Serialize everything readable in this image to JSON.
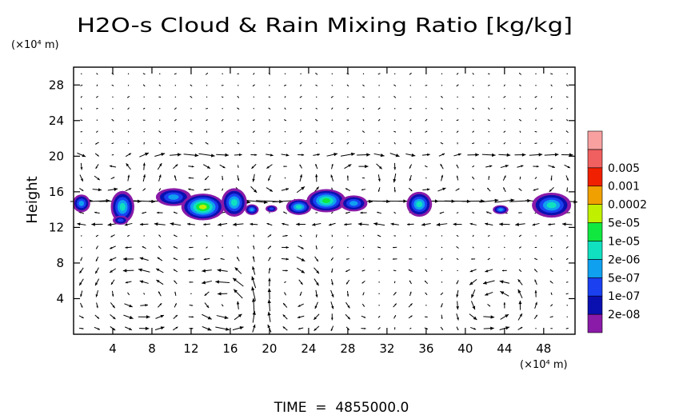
{
  "chart_data": {
    "type": "heatmap",
    "title": "H2O-s Cloud & Rain Mixing Ratio [kg/kg]",
    "ylabel": "Height",
    "y_unit": "(×10⁴ m)",
    "x_unit": "(×10⁴ m)",
    "footer": "TIME  =  4855000.0",
    "xlim": [
      0,
      51.2
    ],
    "ylim": [
      0,
      30
    ],
    "x_ticks": [
      "4",
      "8",
      "12",
      "16",
      "20",
      "24",
      "28",
      "32",
      "36",
      "40",
      "44",
      "48"
    ],
    "y_ticks": [
      "4",
      "8",
      "12",
      "16",
      "20",
      "24",
      "28"
    ],
    "x_tick_values": [
      4,
      8,
      12,
      16,
      20,
      24,
      28,
      32,
      36,
      40,
      44,
      48
    ],
    "y_tick_values": [
      4,
      8,
      12,
      16,
      20,
      24,
      28
    ],
    "colorbar": {
      "levels": [
        "2e-08",
        "1e-07",
        "5e-07",
        "2e-06",
        "1e-05",
        "5e-05",
        "0.0002",
        "0.001",
        "0.005"
      ],
      "colors": [
        "#8a1aa8",
        "#0a10b0",
        "#1a40f0",
        "#10a0f0",
        "#10e0c0",
        "#10e840",
        "#c0f000",
        "#f0a000",
        "#f02000",
        "#f06060",
        "#f8a0a0"
      ]
    },
    "cloud_blobs": [
      {
        "x": 0.8,
        "y": 14.7,
        "rx": 0.9,
        "ry": 1.0,
        "level": 3
      },
      {
        "x": 5.0,
        "y": 14.3,
        "rx": 1.2,
        "ry": 1.8,
        "level": 4
      },
      {
        "x": 4.8,
        "y": 12.8,
        "rx": 0.8,
        "ry": 0.5,
        "level": 2
      },
      {
        "x": 10.2,
        "y": 15.4,
        "rx": 1.8,
        "ry": 1.0,
        "level": 3
      },
      {
        "x": 13.2,
        "y": 14.3,
        "rx": 2.2,
        "ry": 1.5,
        "level": 6
      },
      {
        "x": 16.4,
        "y": 14.8,
        "rx": 1.3,
        "ry": 1.6,
        "level": 4
      },
      {
        "x": 18.2,
        "y": 14.0,
        "rx": 0.7,
        "ry": 0.6,
        "level": 3
      },
      {
        "x": 20.2,
        "y": 14.1,
        "rx": 0.6,
        "ry": 0.4,
        "level": 2
      },
      {
        "x": 23.0,
        "y": 14.3,
        "rx": 1.3,
        "ry": 0.9,
        "level": 4
      },
      {
        "x": 25.8,
        "y": 15.0,
        "rx": 2.0,
        "ry": 1.3,
        "level": 5
      },
      {
        "x": 28.6,
        "y": 14.7,
        "rx": 1.4,
        "ry": 0.9,
        "level": 3
      },
      {
        "x": 35.3,
        "y": 14.6,
        "rx": 1.3,
        "ry": 1.4,
        "level": 4
      },
      {
        "x": 43.6,
        "y": 14.0,
        "rx": 0.8,
        "ry": 0.5,
        "level": 3
      },
      {
        "x": 48.8,
        "y": 14.5,
        "rx": 2.0,
        "ry": 1.4,
        "level": 4
      }
    ],
    "circulation_cells": [
      {
        "x": 6.5,
        "y": 4.5,
        "rx": 5.0,
        "ry": 4.0,
        "strength": 1.0
      },
      {
        "x": 16.0,
        "y": 3.5,
        "rx": 3.5,
        "ry": 3.5,
        "strength": 1.3
      },
      {
        "x": 22.0,
        "y": 4.5,
        "rx": 4.0,
        "ry": 4.5,
        "strength": -0.8
      },
      {
        "x": 43.0,
        "y": 3.5,
        "rx": 4.0,
        "ry": 3.0,
        "strength": 1.0
      },
      {
        "x": 30.0,
        "y": 5.0,
        "rx": 5.0,
        "ry": 4.0,
        "strength": 0.4
      },
      {
        "x": 4.0,
        "y": 18.0,
        "rx": 4.0,
        "ry": 2.0,
        "strength": 0.8
      },
      {
        "x": 12.0,
        "y": 18.0,
        "rx": 3.0,
        "ry": 2.0,
        "strength": -0.7
      },
      {
        "x": 21.0,
        "y": 17.5,
        "rx": 3.5,
        "ry": 2.0,
        "strength": 0.8
      },
      {
        "x": 30.0,
        "y": 17.5,
        "rx": 3.0,
        "ry": 2.0,
        "strength": -0.6
      },
      {
        "x": 36.0,
        "y": 17.5,
        "rx": 3.0,
        "ry": 2.0,
        "strength": 0.7
      },
      {
        "x": 46.0,
        "y": 17.5,
        "rx": 4.0,
        "ry": 2.0,
        "strength": -0.6
      }
    ],
    "jets": [
      {
        "y": 15.0,
        "half_width": 0.7,
        "u": 1.6
      },
      {
        "y": 12.9,
        "half_width": 0.6,
        "u": -1.4
      },
      {
        "y": 19.8,
        "half_width": 0.7,
        "u": 0.9
      }
    ]
  }
}
